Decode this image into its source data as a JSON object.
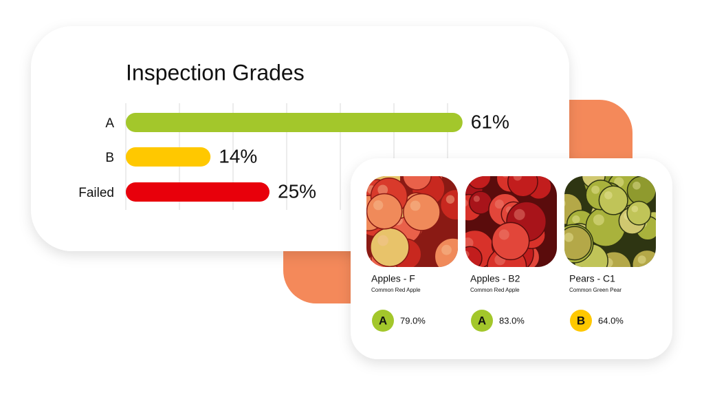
{
  "chart_data": {
    "type": "hbar",
    "title": "Inspection Grades",
    "categories": [
      "A",
      "B",
      "Failed"
    ],
    "values": [
      61,
      14,
      25
    ],
    "value_labels": [
      "61%",
      "14%",
      "25%"
    ],
    "colors": [
      "#a3c72b",
      "#ffc800",
      "#e8000b"
    ],
    "xlim": [
      0,
      70
    ],
    "xticks": [
      0,
      10,
      20,
      30,
      40,
      50,
      60
    ],
    "grid": true
  },
  "cards": [
    {
      "title": "Apples - F",
      "subtitle": "Common Red Apple",
      "grade": "A",
      "grade_color": "#a3c72b",
      "score": "79.0%"
    },
    {
      "title": "Apples - B2",
      "subtitle": "Common Red Apple",
      "grade": "A",
      "grade_color": "#a3c72b",
      "score": "83.0%"
    },
    {
      "title": "Pears - C1",
      "subtitle": "Common Green Pear",
      "grade": "B",
      "grade_color": "#ffc800",
      "score": "64.0%"
    }
  ]
}
